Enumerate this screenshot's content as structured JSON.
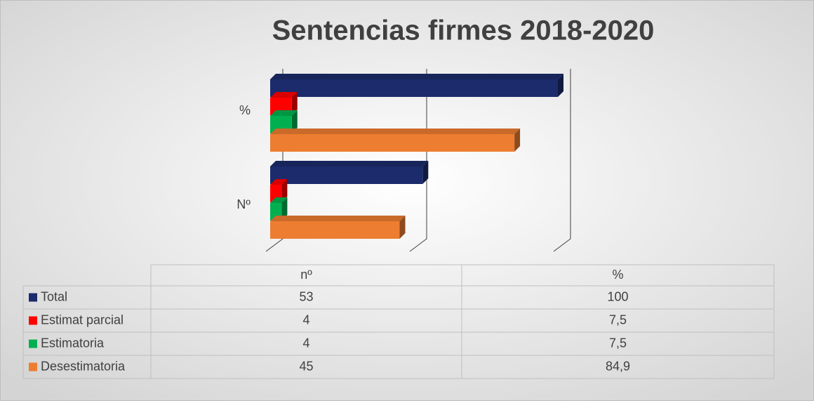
{
  "chart_data": {
    "type": "bar3d_horizontal",
    "title": "Sentencias firmes 2018-2020",
    "categories": [
      "Nº",
      "%"
    ],
    "table_headers": [
      "nº",
      "%"
    ],
    "series": [
      {
        "name": "Total",
        "color": "#1b2b6b",
        "values": [
          53,
          100
        ]
      },
      {
        "name": "Estimat parcial",
        "color": "#ff0000",
        "values": [
          4,
          7.5
        ],
        "value_labels": [
          "4",
          "7,5"
        ]
      },
      {
        "name": "Estimatoria",
        "color": "#00b050",
        "values": [
          4,
          7.5
        ],
        "value_labels": [
          "4",
          "7,5"
        ]
      },
      {
        "name": "Desestimatoria",
        "color": "#ed7d31",
        "values": [
          45,
          84.9
        ],
        "value_labels": [
          "45",
          "84,9"
        ]
      }
    ],
    "xlim": [
      0,
      100
    ],
    "xticks": [
      0,
      50,
      100
    ],
    "show_tick_labels": false,
    "grid": true,
    "data_table": true
  }
}
